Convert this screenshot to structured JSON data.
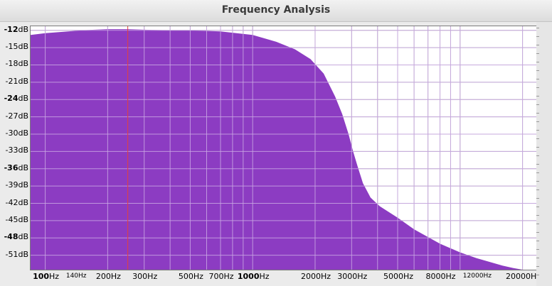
{
  "window": {
    "title": "Frequency Analysis"
  },
  "colors": {
    "fill": "#8a38c1",
    "cursor": "#e0403f",
    "grid": "#b8b8b8"
  },
  "chart_data": {
    "type": "area",
    "xscale": "log",
    "xlim": [
      85,
      23500
    ],
    "ylim": [
      -53.5,
      -11.3
    ],
    "y_ticks": [
      {
        "value": -12,
        "num": "-12",
        "unit": "dB",
        "bold": true
      },
      {
        "value": -15,
        "num": "-15",
        "unit": "dB",
        "bold": false
      },
      {
        "value": -18,
        "num": "-18",
        "unit": "dB",
        "bold": false
      },
      {
        "value": -21,
        "num": "-21",
        "unit": "dB",
        "bold": false
      },
      {
        "value": -24,
        "num": "-24",
        "unit": "dB",
        "bold": true
      },
      {
        "value": -27,
        "num": "-27",
        "unit": "dB",
        "bold": false
      },
      {
        "value": -30,
        "num": "-30",
        "unit": "dB",
        "bold": false
      },
      {
        "value": -33,
        "num": "-33",
        "unit": "dB",
        "bold": false
      },
      {
        "value": -36,
        "num": "-36",
        "unit": "dB",
        "bold": true
      },
      {
        "value": -39,
        "num": "-39",
        "unit": "dB",
        "bold": false
      },
      {
        "value": -42,
        "num": "-42",
        "unit": "dB",
        "bold": false
      },
      {
        "value": -45,
        "num": "-45",
        "unit": "dB",
        "bold": false
      },
      {
        "value": -48,
        "num": "-48",
        "unit": "dB",
        "bold": true
      },
      {
        "value": -51,
        "num": "-51",
        "unit": "dB",
        "bold": false
      }
    ],
    "x_ticks": [
      {
        "value": 100,
        "num": "100",
        "unit": "Hz",
        "bold": true,
        "small": false
      },
      {
        "value": 140,
        "num": "140",
        "unit": "Hz",
        "bold": false,
        "small": true
      },
      {
        "value": 200,
        "num": "200",
        "unit": "Hz",
        "bold": false,
        "small": false
      },
      {
        "value": 300,
        "num": "300",
        "unit": "Hz",
        "bold": false,
        "small": false
      },
      {
        "value": 500,
        "num": "500",
        "unit": "Hz",
        "bold": false,
        "small": false
      },
      {
        "value": 700,
        "num": "700",
        "unit": "Hz",
        "bold": false,
        "small": false
      },
      {
        "value": 1000,
        "num": "1000",
        "unit": "Hz",
        "bold": true,
        "small": false
      },
      {
        "value": 2000,
        "num": "2000",
        "unit": "Hz",
        "bold": false,
        "small": false
      },
      {
        "value": 3000,
        "num": "3000",
        "unit": "Hz",
        "bold": false,
        "small": false
      },
      {
        "value": 5000,
        "num": "5000",
        "unit": "Hz",
        "bold": false,
        "small": false
      },
      {
        "value": 8000,
        "num": "8000",
        "unit": "Hz",
        "bold": false,
        "small": false
      },
      {
        "value": 12000,
        "num": "12000",
        "unit": "Hz",
        "bold": false,
        "small": true
      },
      {
        "value": 20000,
        "num": "20000",
        "unit": "Hz",
        "bold": false,
        "small": false
      }
    ],
    "x_grid": [
      100,
      200,
      300,
      400,
      500,
      600,
      700,
      800,
      900,
      1000,
      2000,
      3000,
      4000,
      5000,
      6000,
      7000,
      8000,
      9000,
      10000,
      20000
    ],
    "cursor_x": 250,
    "series": [
      {
        "x": [
          85,
          100,
          150,
          200,
          250,
          300,
          400,
          500,
          700,
          1000,
          1300,
          1600,
          1900,
          2200,
          2500,
          2700,
          2900,
          3050,
          3200,
          3400,
          3700,
          4100,
          5000,
          6000,
          8000,
          10000,
          12000,
          14000,
          16000,
          18000,
          20000,
          22000,
          23500
        ],
        "y": [
          -12.8,
          -12.5,
          -12.0,
          -11.8,
          -11.8,
          -11.9,
          -12.0,
          -12.0,
          -12.2,
          -12.8,
          -14.0,
          -15.3,
          -17.0,
          -19.5,
          -23.5,
          -26.5,
          -30.0,
          -33.0,
          -35.5,
          -38.5,
          -41.0,
          -42.5,
          -44.5,
          -46.5,
          -49.0,
          -50.5,
          -51.5,
          -52.2,
          -52.8,
          -53.2,
          -53.5,
          -53.5,
          -53.5
        ]
      }
    ]
  }
}
